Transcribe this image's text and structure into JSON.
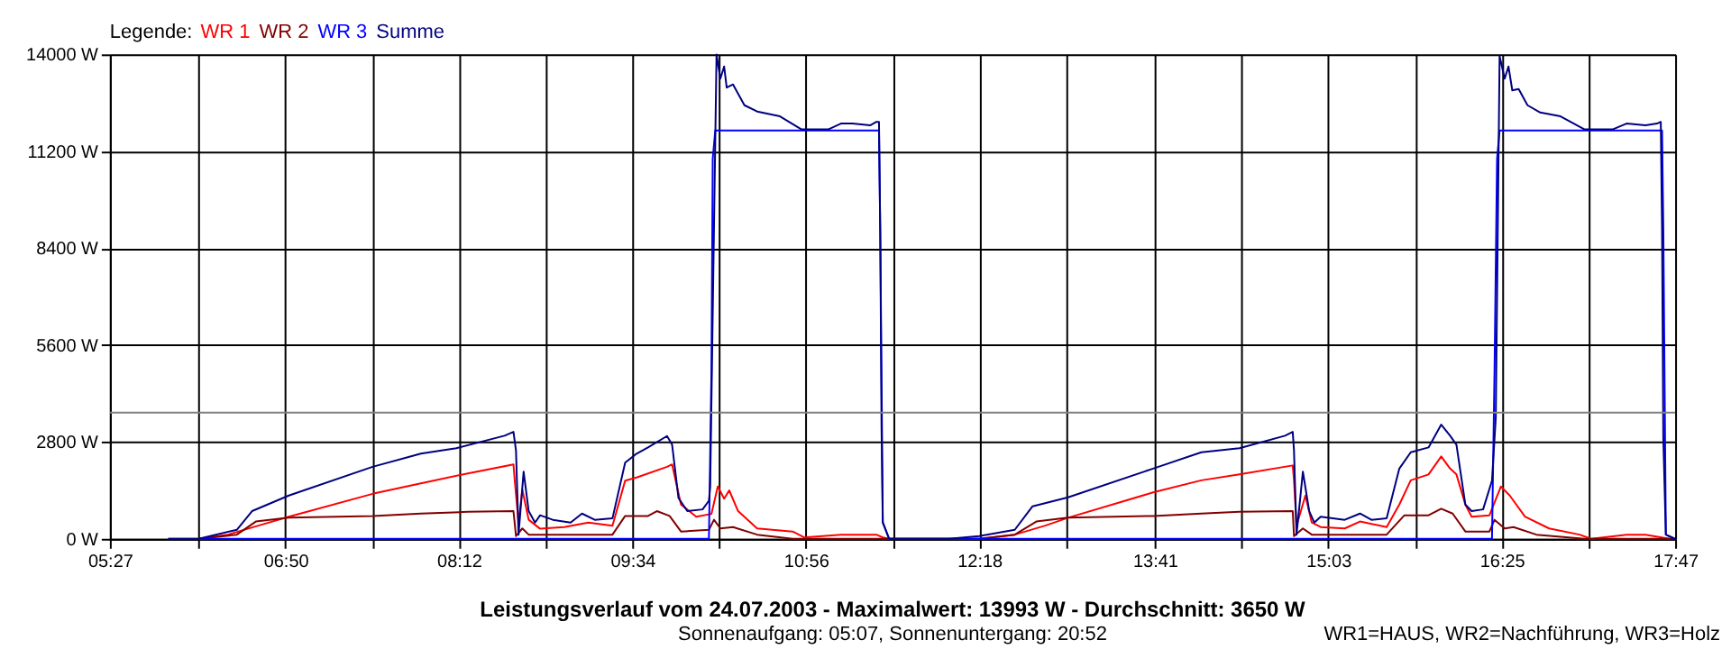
{
  "chart_data": {
    "type": "line",
    "title": "Leistungsverlauf vom 24.07.2003 - Maximalwert: 13993 W - Durchschnitt: 3650 W",
    "subtitle": "Sonnenaufgang: 05:07, Sonnenuntergang: 20:52",
    "legend_title": "Legende:",
    "legend": "top left",
    "grid": true,
    "annotations": [
      "WR1=HAUS, WR2=Nachführung, WR3=Holz"
    ],
    "xlim": [
      5.45,
      17.7833
    ],
    "xticks": [
      {
        "value": 5.45,
        "label": "05:27"
      },
      {
        "value": 6.1417,
        "label": null
      },
      {
        "value": 6.8333,
        "label": "06:50"
      },
      {
        "value": 7.5167,
        "label": null
      },
      {
        "value": 8.2,
        "label": "08:12"
      },
      {
        "value": 8.8833,
        "label": null
      },
      {
        "value": 9.5667,
        "label": "09:34"
      },
      {
        "value": 10.25,
        "label": null
      },
      {
        "value": 10.9333,
        "label": "10:56"
      },
      {
        "value": 11.6167,
        "label": null
      },
      {
        "value": 12.3,
        "label": "12:18"
      },
      {
        "value": 12.9917,
        "label": null
      },
      {
        "value": 13.6833,
        "label": "13:41"
      },
      {
        "value": 14.3667,
        "label": null
      },
      {
        "value": 15.05,
        "label": "15:03"
      },
      {
        "value": 15.7333,
        "label": null
      },
      {
        "value": 16.4167,
        "label": "16:25"
      },
      {
        "value": 17.1,
        "label": null
      },
      {
        "value": 17.7833,
        "label": "17:47"
      }
    ],
    "ylim": [
      0,
      14000
    ],
    "yticks": [
      {
        "value": 0,
        "label": "0 W"
      },
      {
        "value": 2800,
        "label": "2800 W"
      },
      {
        "value": 5600,
        "label": "5600 W"
      },
      {
        "value": 8400,
        "label": "8400 W"
      },
      {
        "value": 11200,
        "label": "11200 W"
      },
      {
        "value": 14000,
        "label": "14000 W"
      }
    ],
    "ref_lines": [
      {
        "axis": "y",
        "value": 3650,
        "color": "#808080"
      }
    ],
    "series": [
      {
        "name": "WR 1",
        "color": "#ff0000",
        "x": [
          6.15,
          6.38,
          6.62,
          6.86,
          7.52,
          7.9,
          8.27,
          8.63,
          8.64,
          8.67,
          8.7,
          8.75,
          8.84,
          9.03,
          9.22,
          9.41,
          9.51,
          9.6,
          9.84,
          9.88,
          9.95,
          10.07,
          10.19,
          10.24,
          10.29,
          10.33,
          10.4,
          10.55,
          10.83,
          10.92,
          11.21,
          11.49,
          11.54,
          11.59,
          12.3,
          12.58,
          12.82,
          13.0,
          13.67,
          14.05,
          14.35,
          14.77,
          14.78,
          14.8,
          14.87,
          14.92,
          14.99,
          15.18,
          15.3,
          15.51,
          15.61,
          15.7,
          15.84,
          15.94,
          16.01,
          16.06,
          16.13,
          16.18,
          16.32,
          16.41,
          16.48,
          16.6,
          16.79,
          17.03,
          17.12,
          17.4,
          17.55,
          17.74
        ],
        "values": [
          0,
          120,
          380,
          640,
          1300,
          1600,
          1890,
          2150,
          1690,
          470,
          1420,
          550,
          290,
          340,
          470,
          380,
          1680,
          1770,
          2080,
          2150,
          990,
          640,
          720,
          1510,
          1160,
          1400,
          800,
          300,
          210,
          40,
          120,
          120,
          40,
          0,
          0,
          120,
          380,
          610,
          1340,
          1690,
          1860,
          2120,
          1690,
          380,
          1250,
          470,
          340,
          300,
          500,
          340,
          990,
          1690,
          1860,
          2380,
          2030,
          1860,
          990,
          640,
          680,
          1510,
          1250,
          640,
          300,
          120,
          0,
          120,
          120,
          0
        ]
      },
      {
        "name": "WR 2",
        "color": "#800000",
        "x": [
          6.15,
          6.45,
          6.6,
          6.86,
          7.52,
          7.9,
          8.27,
          8.63,
          8.65,
          8.7,
          8.75,
          9.03,
          9.41,
          9.51,
          9.69,
          9.76,
          9.86,
          9.95,
          10.17,
          10.21,
          10.26,
          10.36,
          10.55,
          10.83,
          11.59,
          12.3,
          12.58,
          12.75,
          13.0,
          13.67,
          14.05,
          14.35,
          14.77,
          14.78,
          14.85,
          14.92,
          15.51,
          15.65,
          15.84,
          15.94,
          16.03,
          16.13,
          16.32,
          16.36,
          16.44,
          16.51,
          16.69,
          17.07,
          17.78
        ],
        "values": [
          0,
          120,
          500,
          610,
          660,
          730,
          780,
          800,
          80,
          300,
          120,
          120,
          120,
          660,
          660,
          800,
          660,
          210,
          260,
          550,
          300,
          340,
          120,
          0,
          0,
          0,
          120,
          500,
          610,
          660,
          730,
          780,
          800,
          80,
          300,
          120,
          120,
          680,
          680,
          870,
          730,
          210,
          210,
          550,
          300,
          340,
          120,
          0,
          0
        ]
      },
      {
        "name": "WR 3",
        "color": "#0000ff",
        "x": [
          5.91,
          10.17,
          10.19,
          10.2,
          10.22,
          11.51,
          11.52,
          11.54,
          11.59,
          12.06,
          16.34,
          16.36,
          16.38,
          16.4,
          17.68,
          17.69,
          17.71,
          17.78
        ],
        "values": [
          0,
          0,
          4840,
          10980,
          11800,
          11800,
          8880,
          470,
          0,
          0,
          0,
          4840,
          10980,
          11800,
          11800,
          8970,
          120,
          0
        ]
      },
      {
        "name": "Summe",
        "color": "#000080",
        "x": [
          5.91,
          6.15,
          6.45,
          6.57,
          6.86,
          7.52,
          7.9,
          8.18,
          8.56,
          8.63,
          8.65,
          8.67,
          8.71,
          8.75,
          8.8,
          8.84,
          8.94,
          9.08,
          9.17,
          9.27,
          9.41,
          9.51,
          9.6,
          9.69,
          9.84,
          9.88,
          9.93,
          10.0,
          10.12,
          10.17,
          10.18,
          10.23,
          10.26,
          10.29,
          10.31,
          10.36,
          10.45,
          10.55,
          10.73,
          10.9,
          11.11,
          11.21,
          11.3,
          11.44,
          11.49,
          11.51,
          11.52,
          11.53,
          11.54,
          11.59,
          12.06,
          12.3,
          12.58,
          12.72,
          13.0,
          13.67,
          14.05,
          14.35,
          14.71,
          14.77,
          14.78,
          14.8,
          14.85,
          14.9,
          14.94,
          14.99,
          15.18,
          15.3,
          15.39,
          15.51,
          15.61,
          15.7,
          15.84,
          15.94,
          16.01,
          16.06,
          16.13,
          16.18,
          16.27,
          16.34,
          16.37,
          16.4,
          16.44,
          16.47,
          16.5,
          16.55,
          16.62,
          16.72,
          16.88,
          17.07,
          17.29,
          17.4,
          17.55,
          17.64,
          17.67,
          17.68,
          17.69,
          17.71,
          17.78
        ],
        "values": [
          0,
          0,
          260,
          800,
          1250,
          2080,
          2460,
          2620,
          2980,
          3090,
          2550,
          120,
          1940,
          800,
          470,
          680,
          550,
          470,
          730,
          550,
          590,
          2200,
          2460,
          2640,
          2970,
          2720,
          1180,
          800,
          850,
          1100,
          1510,
          13993,
          13300,
          13650,
          13040,
          13130,
          12530,
          12350,
          12210,
          11830,
          11830,
          12000,
          12000,
          11950,
          12050,
          12050,
          8880,
          3240,
          470,
          0,
          0,
          80,
          260,
          940,
          1200,
          2030,
          2500,
          2620,
          2980,
          3090,
          2550,
          120,
          1940,
          800,
          470,
          640,
          550,
          730,
          550,
          590,
          2030,
          2500,
          2640,
          3300,
          2980,
          2720,
          990,
          800,
          850,
          1680,
          3500,
          13950,
          13300,
          13650,
          12960,
          13000,
          12530,
          12320,
          12210,
          11830,
          11830,
          12000,
          11950,
          12000,
          12050,
          8970,
          2900,
          120,
          0
        ]
      }
    ]
  }
}
